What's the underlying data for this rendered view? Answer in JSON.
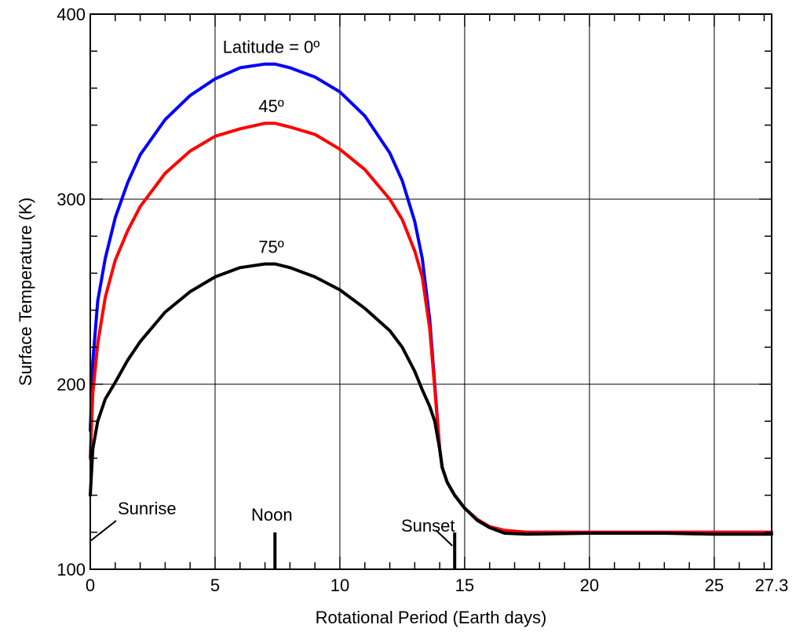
{
  "chart_data": {
    "type": "line",
    "xlabel": "Rotational Period (Earth days)",
    "ylabel": "Surface Temperature (K)",
    "xlim": [
      0,
      27.3
    ],
    "ylim": [
      100,
      400
    ],
    "xticks": [
      0,
      5,
      10,
      15,
      20,
      25,
      27.3
    ],
    "xtick_labels": [
      "0",
      "5",
      "10",
      "15",
      "20",
      "25",
      "27.3"
    ],
    "yticks": [
      100,
      200,
      300,
      400
    ],
    "ytick_labels": [
      "100",
      "200",
      "300",
      "400"
    ],
    "grid": true,
    "series": [
      {
        "name": "0º",
        "color": "#0000ff",
        "x": [
          0,
          0.1,
          0.3,
          0.6,
          1,
          1.5,
          2,
          3,
          4,
          5,
          6,
          7,
          7.4,
          8,
          9,
          10,
          11,
          12,
          12.5,
          13,
          13.3,
          13.6,
          13.8,
          14,
          14.1,
          14.3,
          14.6,
          15,
          15.5,
          16,
          16.6,
          17.5,
          20,
          23,
          25,
          27.3
        ],
        "y": [
          175,
          212,
          245,
          268,
          290,
          309,
          324,
          343,
          356,
          365,
          371,
          373,
          373,
          371,
          366,
          358,
          345,
          325,
          310,
          288,
          268,
          235,
          200,
          165,
          155,
          147,
          140,
          133,
          127,
          123,
          120.5,
          120,
          120,
          120,
          120,
          120
        ]
      },
      {
        "name": "45º",
        "color": "#ff0000",
        "x": [
          0,
          0.1,
          0.3,
          0.6,
          1,
          1.5,
          2,
          3,
          4,
          5,
          6,
          7,
          7.4,
          8,
          9,
          10,
          11,
          12,
          12.5,
          13,
          13.3,
          13.6,
          13.8,
          14,
          14.1,
          14.3,
          14.6,
          15,
          15.5,
          16,
          16.6,
          17.5,
          20,
          23,
          25,
          27.3
        ],
        "y": [
          160,
          195,
          222,
          247,
          267,
          283,
          296,
          314,
          326,
          334,
          338,
          341,
          341,
          339,
          335,
          327,
          316,
          300,
          289,
          272,
          258,
          230,
          198,
          165,
          155,
          147,
          140,
          133,
          127,
          123,
          121,
          120,
          120,
          120,
          120,
          120
        ]
      },
      {
        "name": "75º",
        "color": "#000000",
        "x": [
          0,
          0.1,
          0.3,
          0.6,
          1,
          1.5,
          2,
          3,
          4,
          5,
          6,
          7,
          7.4,
          8,
          9,
          10,
          11,
          12,
          12.5,
          13,
          13.3,
          13.6,
          13.8,
          14,
          14.1,
          14.3,
          14.6,
          15,
          15.5,
          16,
          16.6,
          17.5,
          20,
          23,
          25,
          27.3
        ],
        "y": [
          140,
          165,
          180,
          192,
          201,
          213,
          223,
          239,
          250,
          258,
          263,
          265,
          265,
          263,
          258,
          251,
          241,
          229,
          220,
          207,
          197,
          188,
          180,
          165,
          155,
          147,
          140,
          133,
          126.5,
          122.5,
          119.5,
          119,
          119.5,
          119.5,
          119,
          119
        ]
      }
    ],
    "series_labels": [
      {
        "text": "Latitude = 0º",
        "x": 7.25,
        "y": 379
      },
      {
        "text": "45º",
        "x": 7.25,
        "y": 347
      },
      {
        "text": "75º",
        "x": 7.25,
        "y": 271
      }
    ],
    "markers": [
      {
        "label": "Sunrise",
        "x": 0
      },
      {
        "label": "Noon",
        "x": 7.4
      },
      {
        "label": "Sunset",
        "x": 14.6
      }
    ]
  }
}
